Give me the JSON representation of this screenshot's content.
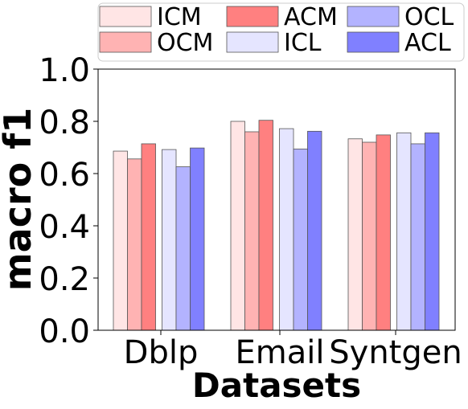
{
  "chart_data": {
    "type": "bar",
    "title": "",
    "xlabel": "Datasets",
    "ylabel": "macro f1",
    "ylim": [
      0.0,
      1.0
    ],
    "yticks": [
      "0.0",
      "0.2",
      "0.4",
      "0.6",
      "0.8",
      "1.0"
    ],
    "categories": [
      "Dblp",
      "Email",
      "Syntgen"
    ],
    "grid": false,
    "legend_position": "top",
    "series": [
      {
        "name": "ICM",
        "color": "#ffe5e5",
        "values": [
          0.686,
          0.8,
          0.733
        ]
      },
      {
        "name": "OCM",
        "color": "#ffb3b3",
        "values": [
          0.656,
          0.76,
          0.72
        ]
      },
      {
        "name": "ACM",
        "color": "#ff8080",
        "values": [
          0.714,
          0.804,
          0.748
        ]
      },
      {
        "name": "ICL",
        "color": "#e5e5ff",
        "values": [
          0.692,
          0.772,
          0.756
        ]
      },
      {
        "name": "OCL",
        "color": "#b3b3ff",
        "values": [
          0.626,
          0.694,
          0.714
        ]
      },
      {
        "name": "ACL",
        "color": "#8080ff",
        "values": [
          0.698,
          0.762,
          0.756
        ]
      }
    ]
  }
}
